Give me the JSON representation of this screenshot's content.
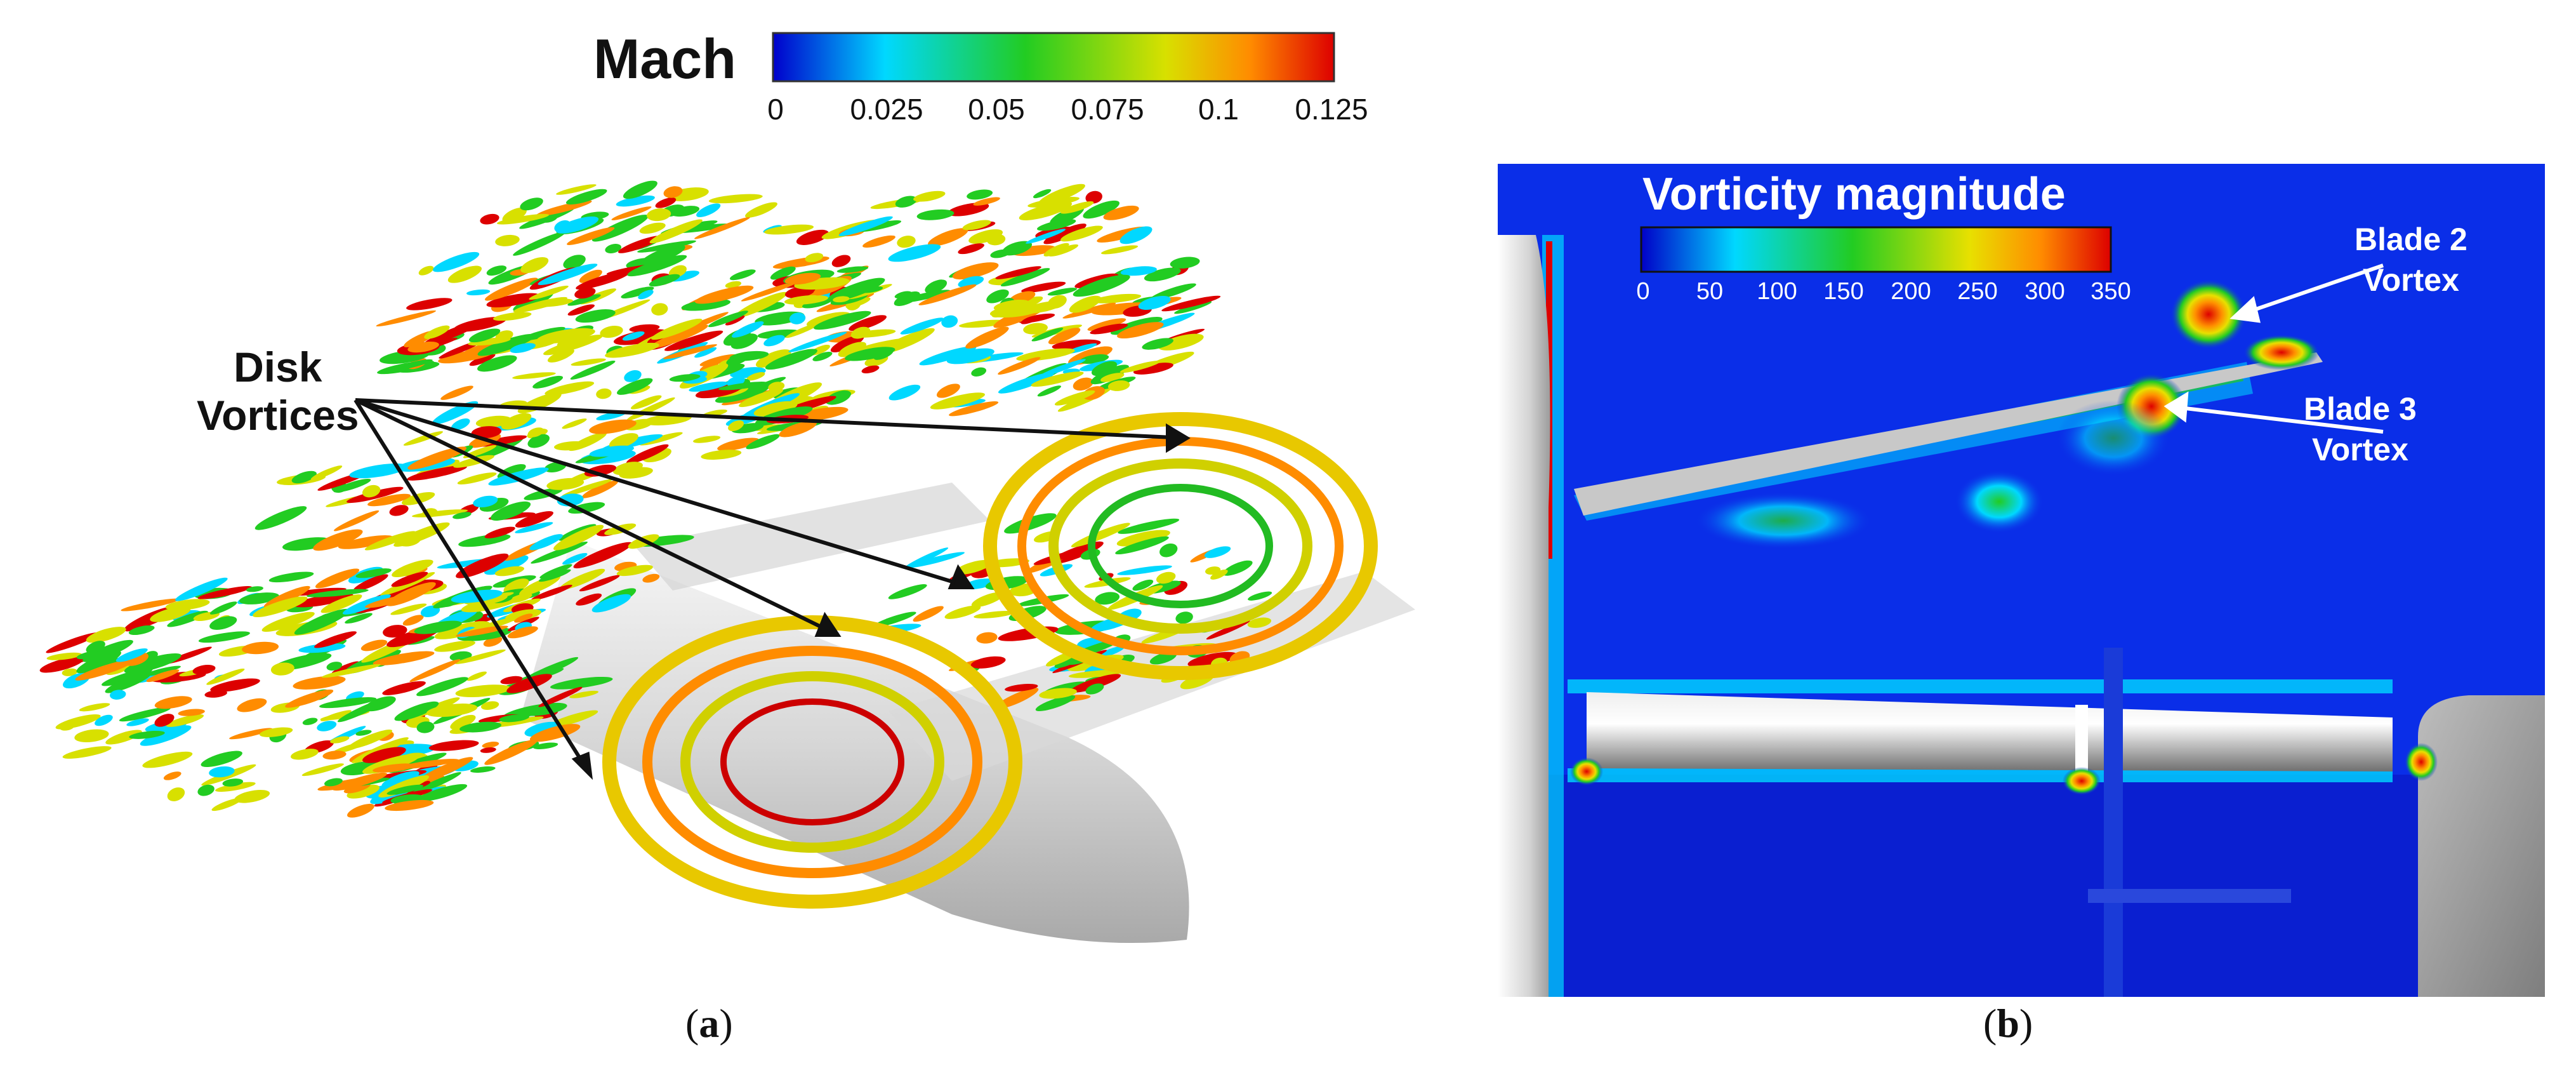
{
  "panel_a": {
    "colorbar_title": "Mach",
    "colorbar_ticks": [
      "0",
      "0.025",
      "0.05",
      "0.075",
      "0.1",
      "0.125"
    ],
    "annotation": "Disk\nVortices",
    "caption_letter": "a",
    "colormap": [
      "#0000cc",
      "#00d8ff",
      "#22cc22",
      "#d8e000",
      "#ff8c00",
      "#dd0000"
    ]
  },
  "panel_b": {
    "colorbar_title": "Vorticity magnitude",
    "colorbar_ticks": [
      "0",
      "50",
      "100",
      "150",
      "200",
      "250",
      "300",
      "350"
    ],
    "annotations": [
      {
        "text": "Blade 2\nVortex"
      },
      {
        "text": "Blade 3\nVortex"
      }
    ],
    "caption_letter": "b",
    "background_color": "#0a2ee8"
  }
}
